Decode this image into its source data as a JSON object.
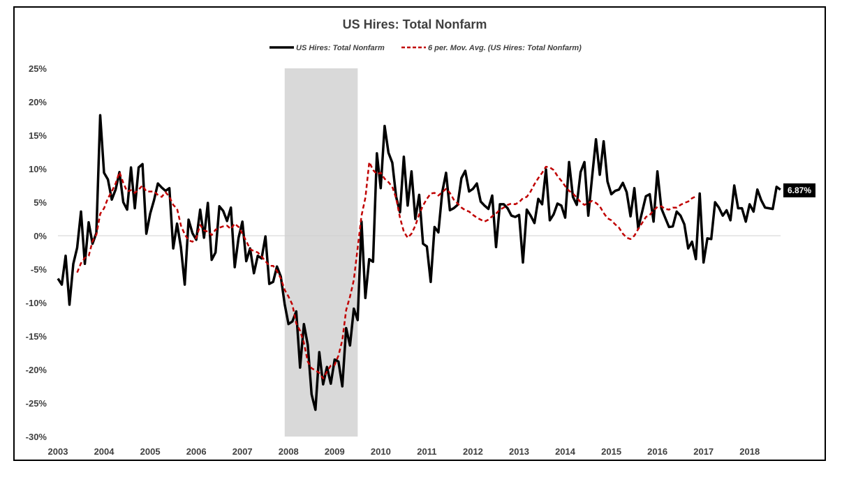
{
  "chart_data": {
    "type": "line",
    "title": "US Hires: Total Nonfarm",
    "xlabel": "",
    "ylabel": "",
    "x_ticks": [
      "2003",
      "2004",
      "2005",
      "2006",
      "2007",
      "2008",
      "2009",
      "2010",
      "2011",
      "2012",
      "2013",
      "2014",
      "2015",
      "2016",
      "2017",
      "2018"
    ],
    "y_ticks": [
      "25%",
      "20%",
      "15%",
      "10%",
      "5%",
      "0%",
      "-5%",
      "-10%",
      "-15%",
      "-20%",
      "-25%",
      "-30%"
    ],
    "xlim": [
      2003.0,
      2018.67
    ],
    "ylim": [
      -30,
      25
    ],
    "legend_position": "top-center",
    "recession_shading": {
      "start": 2007.917,
      "end": 2009.5,
      "color": "#d9d9d9"
    },
    "series": [
      {
        "name": "US Hires: Total Nonfarm",
        "color": "#000000",
        "style": "solid",
        "start": 2003.0,
        "step_months": 1,
        "values": [
          -6.4,
          -7.3,
          -3.0,
          -10.3,
          -4.2,
          -1.8,
          3.6,
          -4.2,
          2.0,
          -1.2,
          0.4,
          18.0,
          9.4,
          8.4,
          5.4,
          6.9,
          9.5,
          5.0,
          3.9,
          10.2,
          4.1,
          10.2,
          10.7,
          0.3,
          3.3,
          5.3,
          7.8,
          7.2,
          6.7,
          7.1,
          -1.9,
          1.8,
          -1.7,
          -7.3,
          2.4,
          0.4,
          -0.6,
          3.9,
          -0.3,
          4.9,
          -3.6,
          -2.5,
          4.4,
          3.7,
          2.2,
          4.2,
          -4.7,
          -0.3,
          2.1,
          -3.8,
          -1.9,
          -5.6,
          -3.0,
          -3.4,
          -0.1,
          -7.2,
          -6.9,
          -4.6,
          -6.1,
          -10.2,
          -13.2,
          -12.8,
          -11.3,
          -19.7,
          -13.2,
          -16.3,
          -23.7,
          -26.0,
          -17.4,
          -22.2,
          -19.6,
          -22.1,
          -18.5,
          -18.8,
          -22.5,
          -13.8,
          -16.4,
          -10.9,
          -12.6,
          2.1,
          -9.3,
          -3.5,
          -3.9,
          12.3,
          7.1,
          16.4,
          12.4,
          10.9,
          5.8,
          3.5,
          11.8,
          4.5,
          9.6,
          2.5,
          6.1,
          -1.2,
          -1.6,
          -6.9,
          1.3,
          0.5,
          6.5,
          9.4,
          3.8,
          4.1,
          4.6,
          8.6,
          9.7,
          6.6,
          7.0,
          7.8,
          5.1,
          4.5,
          4.0,
          6.0,
          -1.7,
          4.7,
          4.7,
          4.1,
          3.0,
          2.8,
          3.1,
          -4.0,
          3.9,
          3.0,
          1.9,
          5.5,
          4.7,
          9.9,
          2.3,
          3.2,
          4.8,
          4.5,
          2.7,
          11.0,
          5.8,
          4.6,
          9.5,
          11.0,
          3.0,
          8.8,
          14.4,
          9.1,
          14.1,
          8.1,
          6.2,
          6.7,
          6.9,
          7.9,
          6.5,
          2.9,
          7.1,
          1.1,
          3.5,
          5.9,
          6.2,
          2.1,
          9.6,
          4.1,
          2.7,
          1.3,
          1.4,
          3.6,
          3.0,
          1.7,
          -1.9,
          -0.9,
          -3.5,
          6.3,
          -4.0,
          -0.4,
          -0.5,
          5.0,
          4.2,
          3.0,
          3.8,
          2.3,
          7.5,
          4.1,
          4.1,
          2.1,
          4.7,
          3.6,
          6.9,
          5.3,
          4.2,
          4.1,
          4.0,
          7.3,
          6.87
        ]
      },
      {
        "name": "6 per. Mov. Avg. (US Hires: Total Nonfarm)",
        "color": "#c00000",
        "style": "dashed",
        "start": 2003.417,
        "step_months": 1,
        "values": [
          -5.5,
          -4.1,
          -3.3,
          -3.0,
          -0.8,
          0.2,
          3.3,
          4.1,
          5.6,
          6.6,
          7.8,
          9.5,
          7.9,
          6.6,
          6.8,
          6.4,
          6.9,
          7.5,
          6.6,
          6.6,
          6.6,
          6.1,
          5.8,
          6.5,
          5.8,
          4.6,
          4.0,
          1.5,
          0.2,
          -0.7,
          -0.9,
          -0.3,
          1.6,
          0.8,
          0.6,
          0.1,
          0.9,
          1.2,
          1.4,
          1.5,
          1.0,
          1.8,
          1.3,
          0.3,
          -0.8,
          -2.0,
          -2.3,
          -2.5,
          -3.1,
          -3.8,
          -4.5,
          -4.5,
          -5.3,
          -6.4,
          -8.1,
          -9.1,
          -10.3,
          -13.1,
          -14.2,
          -16.0,
          -18.8,
          -19.8,
          -20.1,
          -20.5,
          -21.3,
          -20.3,
          -19.4,
          -19.3,
          -17.9,
          -15.6,
          -11.1,
          -9.1,
          -6.6,
          -1.8,
          3.0,
          5.7,
          11.0,
          9.8,
          9.2,
          9.4,
          8.5,
          8.0,
          7.3,
          5.6,
          2.7,
          0.6,
          -0.3,
          0.3,
          1.5,
          3.2,
          4.5,
          5.5,
          6.3,
          6.4,
          6.0,
          6.5,
          7.0,
          6.4,
          5.4,
          4.8,
          4.2,
          3.8,
          3.6,
          3.1,
          2.7,
          2.4,
          2.1,
          2.4,
          2.9,
          3.3,
          3.9,
          4.2,
          4.6,
          4.8,
          4.7,
          5.0,
          5.6,
          5.8,
          6.6,
          7.7,
          8.6,
          9.4,
          10.3,
          10.2,
          9.8,
          8.9,
          8.2,
          7.4,
          6.7,
          6.3,
          5.7,
          5.0,
          4.6,
          4.9,
          5.2,
          4.9,
          4.4,
          3.4,
          2.6,
          2.3,
          1.7,
          1.2,
          0.3,
          -0.3,
          -0.5,
          0.0,
          1.0,
          1.9,
          2.8,
          3.1,
          3.8,
          4.3,
          4.4,
          4.0,
          3.9,
          4.2,
          4.2,
          4.6,
          4.9,
          5.1,
          5.6,
          5.87
        ]
      }
    ],
    "end_label": "6.87%"
  }
}
